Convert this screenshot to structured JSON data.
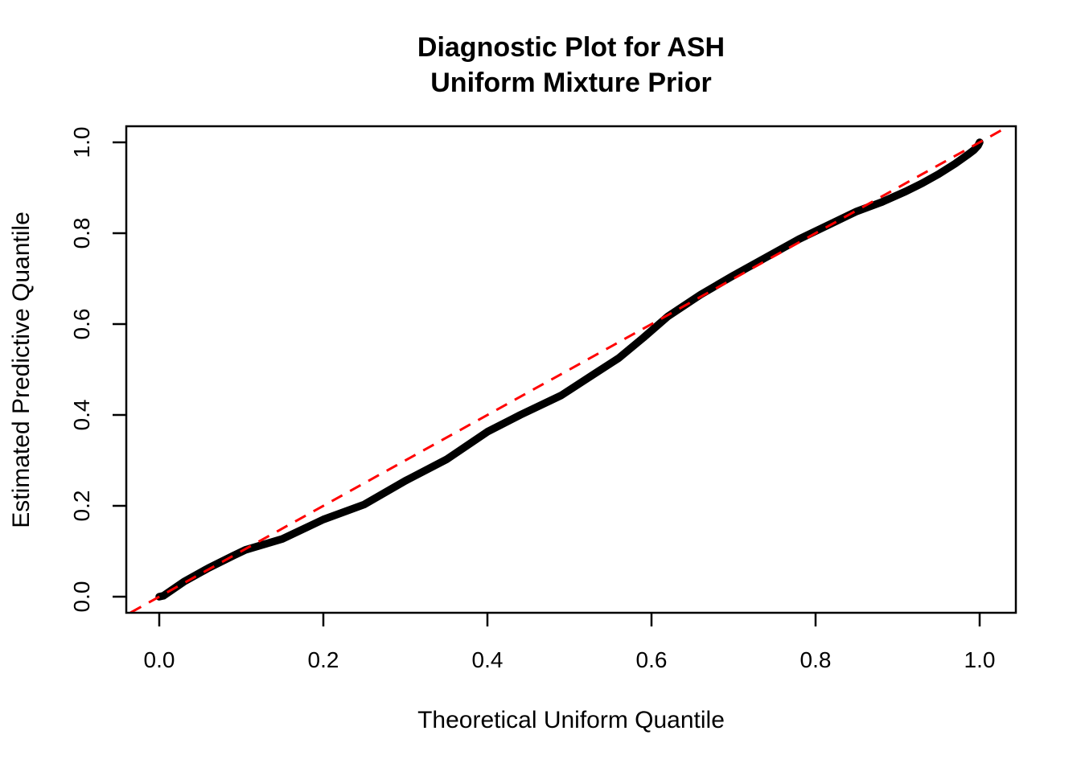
{
  "chart_data": {
    "type": "line",
    "title_lines": [
      "Diagnostic Plot for ASH",
      "Uniform Mixture Prior"
    ],
    "xlabel": "Theoretical Uniform Quantile",
    "ylabel": "Estimated Predictive Quantile",
    "xlim": [
      -0.035,
      1.035
    ],
    "ylim": [
      -0.035,
      1.035
    ],
    "x_ticks": [
      0.0,
      0.2,
      0.4,
      0.6,
      0.8,
      1.0
    ],
    "x_tick_labels": [
      "0.0",
      "0.2",
      "0.4",
      "0.6",
      "0.8",
      "1.0"
    ],
    "y_ticks": [
      0.0,
      0.2,
      0.4,
      0.6,
      0.8,
      1.0
    ],
    "y_tick_labels": [
      "0.0",
      "0.2",
      "0.4",
      "0.6",
      "0.8",
      "1.0"
    ],
    "grid": false,
    "legend": null,
    "series": [
      {
        "name": "estimated-vs-theoretical-quantiles",
        "type": "point-curve",
        "color": "#000000",
        "points": [
          [
            0.0,
            0.0
          ],
          [
            0.005,
            0.002
          ],
          [
            0.03,
            0.033
          ],
          [
            0.06,
            0.063
          ],
          [
            0.09,
            0.09
          ],
          [
            0.105,
            0.103
          ],
          [
            0.15,
            0.127
          ],
          [
            0.2,
            0.17
          ],
          [
            0.25,
            0.203
          ],
          [
            0.3,
            0.255
          ],
          [
            0.35,
            0.302
          ],
          [
            0.4,
            0.363
          ],
          [
            0.44,
            0.4
          ],
          [
            0.49,
            0.443
          ],
          [
            0.53,
            0.49
          ],
          [
            0.56,
            0.525
          ],
          [
            0.59,
            0.57
          ],
          [
            0.62,
            0.617
          ],
          [
            0.66,
            0.665
          ],
          [
            0.7,
            0.707
          ],
          [
            0.74,
            0.747
          ],
          [
            0.78,
            0.787
          ],
          [
            0.82,
            0.822
          ],
          [
            0.85,
            0.848
          ],
          [
            0.88,
            0.868
          ],
          [
            0.91,
            0.892
          ],
          [
            0.93,
            0.91
          ],
          [
            0.95,
            0.93
          ],
          [
            0.97,
            0.953
          ],
          [
            0.985,
            0.972
          ],
          [
            0.993,
            0.983
          ],
          [
            0.998,
            0.993
          ],
          [
            1.0,
            1.0
          ]
        ]
      },
      {
        "name": "identity-reference-line",
        "type": "abline",
        "intercept": 0,
        "slope": 1,
        "color": "#FF0000",
        "style": "dashed"
      }
    ]
  },
  "colors": {
    "background": "#FFFFFF",
    "foreground": "#000000",
    "reference_line": "#FF0000"
  }
}
